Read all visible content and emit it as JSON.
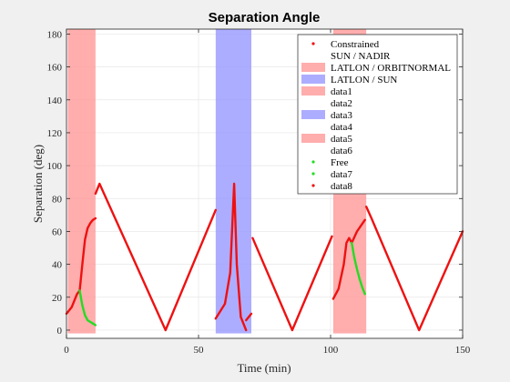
{
  "chart_data": {
    "type": "line",
    "title": "Separation Angle",
    "xlabel": "Time (min)",
    "ylabel": "Separation (deg)",
    "xlim": [
      0,
      150
    ],
    "ylim": [
      -5,
      183
    ],
    "xticks": [
      0,
      50,
      100,
      150
    ],
    "yticks": [
      0,
      20,
      40,
      60,
      80,
      100,
      120,
      140,
      160,
      180
    ],
    "grid": true,
    "legend_position": "top-right",
    "colors": {
      "red": "#ee1111",
      "green": "#22dd22",
      "pink": "#ff9999",
      "blue": "#9999ff"
    },
    "shaded_regions": [
      {
        "x0": 0.5,
        "x1": 11,
        "color": "pink"
      },
      {
        "x0": 56.5,
        "x1": 70,
        "color": "blue"
      },
      {
        "x0": 101,
        "x1": 113.5,
        "color": "pink"
      }
    ],
    "series": [
      {
        "name": "Constrained",
        "color": "red",
        "x": [
          0,
          2,
          4,
          5,
          6,
          7,
          8,
          9,
          10,
          11
        ],
        "y": [
          10,
          14,
          22,
          24,
          40,
          55,
          62,
          65,
          67,
          68
        ]
      },
      {
        "name": "",
        "color": "red",
        "x": [
          11,
          12.5,
          37.5,
          56.5
        ],
        "y": [
          83,
          89,
          0,
          73
        ]
      },
      {
        "name": "",
        "color": "red",
        "x": [
          56.5,
          60,
          62,
          63.5,
          64.5,
          66,
          68
        ],
        "y": [
          7,
          16,
          35,
          89,
          40,
          8,
          0
        ]
      },
      {
        "name": "",
        "color": "red",
        "x": [
          68,
          70
        ],
        "y": [
          6,
          10
        ]
      },
      {
        "name": "",
        "color": "red",
        "x": [
          70.5,
          85.5,
          100.5
        ],
        "y": [
          56,
          0,
          57
        ]
      },
      {
        "name": "",
        "color": "red",
        "x": [
          101,
          103,
          105,
          106,
          107,
          108,
          110,
          113
        ],
        "y": [
          19,
          25,
          40,
          53,
          56,
          53,
          60,
          67
        ]
      },
      {
        "name": "",
        "color": "red",
        "x": [
          113.5,
          115.5,
          133.5,
          150
        ],
        "y": [
          75,
          68,
          0,
          60
        ]
      },
      {
        "name": "Free",
        "color": "green",
        "x": [
          5,
          6,
          7,
          8,
          9,
          10,
          11
        ],
        "y": [
          24,
          15,
          9,
          6,
          5,
          4,
          3
        ]
      },
      {
        "name": "",
        "color": "green",
        "x": [
          108,
          109,
          110,
          111,
          112,
          113
        ],
        "y": [
          53,
          44,
          37,
          31,
          26,
          22
        ]
      }
    ],
    "legend": [
      {
        "label": "Constrained",
        "kind": "marker",
        "color": "red"
      },
      {
        "label": "SUN / NADIR",
        "kind": "none"
      },
      {
        "label": "LATLON / ORBITNORMAL",
        "kind": "patch",
        "color": "pink"
      },
      {
        "label": "LATLON / SUN",
        "kind": "patch",
        "color": "blue"
      },
      {
        "label": "data1",
        "kind": "patch",
        "color": "pink"
      },
      {
        "label": "data2",
        "kind": "none"
      },
      {
        "label": "data3",
        "kind": "patch",
        "color": "blue"
      },
      {
        "label": "data4",
        "kind": "none"
      },
      {
        "label": "data5",
        "kind": "patch",
        "color": "pink"
      },
      {
        "label": "data6",
        "kind": "none"
      },
      {
        "label": "Free",
        "kind": "marker",
        "color": "green"
      },
      {
        "label": "data7",
        "kind": "marker",
        "color": "green"
      },
      {
        "label": "data8",
        "kind": "marker",
        "color": "red"
      }
    ]
  }
}
